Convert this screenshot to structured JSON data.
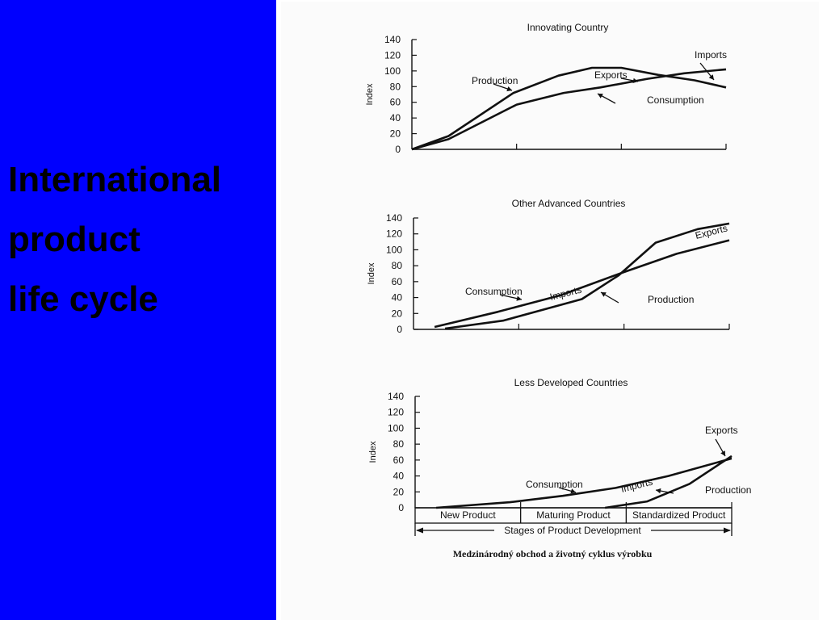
{
  "slide": {
    "title_lines": [
      "International",
      "product",
      "life cycle"
    ],
    "panel_color": "#0000fe"
  },
  "figure": {
    "caption": "Medzinárodný obchod a životný cyklus výrobku",
    "y_axis_label": "Index",
    "x_axis_title": "Stages of Product Development",
    "stages": [
      "New Product",
      "Maturing Product",
      "Standardized Product"
    ]
  },
  "chart_data": [
    {
      "type": "line",
      "title": "Innovating Country",
      "ylabel": "Index",
      "ylim": [
        0,
        140
      ],
      "yticks": [
        0,
        20,
        40,
        60,
        80,
        100,
        120,
        140
      ],
      "xlim": [
        0,
        3
      ],
      "series": [
        {
          "name": "Production",
          "points": [
            [
              0,
              0
            ],
            [
              0.35,
              17
            ],
            [
              0.97,
              72
            ],
            [
              1.4,
              94
            ],
            [
              1.72,
              104
            ],
            [
              2.0,
              104
            ],
            [
              2.35,
              95
            ],
            [
              2.7,
              88
            ],
            [
              3.0,
              79
            ]
          ]
        },
        {
          "name": "Consumption",
          "points": [
            [
              0,
              0
            ],
            [
              0.35,
              13
            ],
            [
              1.0,
              57
            ],
            [
              1.45,
              72
            ],
            [
              1.8,
              79
            ],
            [
              2.25,
              90
            ],
            [
              2.6,
              97
            ],
            [
              3.0,
              102
            ]
          ]
        }
      ],
      "annotations": [
        {
          "text": "Production",
          "x": 0.25,
          "y": 83
        },
        {
          "text": "Exports",
          "x": 1.55,
          "y": 88
        },
        {
          "text": "Imports",
          "x": 2.47,
          "y": 114
        },
        {
          "text": "Consumption",
          "x": 1.95,
          "y": 58
        }
      ]
    },
    {
      "type": "line",
      "title": "Other Advanced Countries",
      "ylabel": "Index",
      "ylim": [
        0,
        140
      ],
      "yticks": [
        0,
        20,
        40,
        60,
        80,
        100,
        120,
        140
      ],
      "xlim": [
        0,
        3
      ],
      "series": [
        {
          "name": "Consumption",
          "points": [
            [
              0.2,
              3
            ],
            [
              0.8,
              22
            ],
            [
              1.4,
              43
            ],
            [
              2.0,
              72
            ],
            [
              2.5,
              95
            ],
            [
              3.0,
              112
            ]
          ]
        },
        {
          "name": "Production",
          "points": [
            [
              0.3,
              1
            ],
            [
              0.85,
              11
            ],
            [
              1.6,
              38
            ],
            [
              1.95,
              68
            ],
            [
              2.3,
              109
            ],
            [
              2.7,
              126
            ],
            [
              3.0,
              133
            ]
          ]
        }
      ],
      "annotations": [
        {
          "text": "Consumption",
          "x": 0.22,
          "y": 41
        },
        {
          "text": "Imports",
          "x": 1.15,
          "y": 28
        },
        {
          "text": "Production",
          "x": 1.98,
          "y": 32
        },
        {
          "text": "Exports",
          "x": 2.52,
          "y": 110
        }
      ]
    },
    {
      "type": "line",
      "title": "Less Developed Countries",
      "ylabel": "Index",
      "ylim": [
        0,
        140
      ],
      "yticks": [
        0,
        20,
        40,
        60,
        80,
        100,
        120,
        140
      ],
      "xlim": [
        0,
        3
      ],
      "categories": [
        "New Product",
        "Maturing Product",
        "Standardized Product"
      ],
      "xlabel": "Stages of Product Development",
      "series": [
        {
          "name": "Consumption",
          "points": [
            [
              0.2,
              0
            ],
            [
              0.9,
              7
            ],
            [
              1.4,
              15
            ],
            [
              1.9,
              25
            ],
            [
              2.4,
              40
            ],
            [
              3.0,
              62
            ]
          ]
        },
        {
          "name": "Production",
          "points": [
            [
              1.8,
              0
            ],
            [
              2.2,
              8
            ],
            [
              2.6,
              30
            ],
            [
              3.0,
              65
            ]
          ]
        }
      ],
      "annotations": [
        {
          "text": "Consumption",
          "x": 0.76,
          "y": 24
        },
        {
          "text": "Imports",
          "x": 1.82,
          "y": 15
        },
        {
          "text": "Production",
          "x": 2.48,
          "y": 17
        },
        {
          "text": "Exports",
          "x": 2.63,
          "y": 88
        }
      ]
    }
  ]
}
